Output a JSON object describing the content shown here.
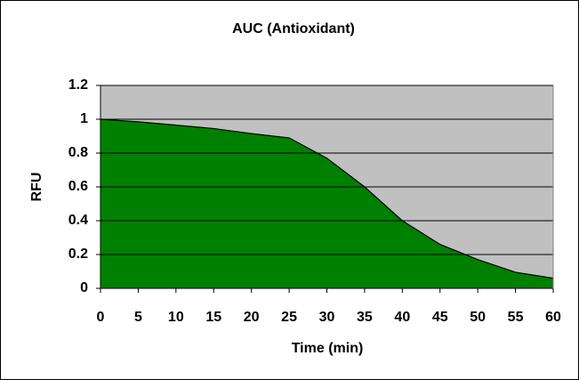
{
  "chart_data": {
    "type": "area",
    "title": "AUC (Antioxidant)",
    "x_label": "Time (min)",
    "y_label": "RFU",
    "x": [
      0,
      5,
      10,
      15,
      20,
      25,
      30,
      35,
      40,
      45,
      50,
      55,
      60
    ],
    "values": [
      1,
      0.985,
      0.965,
      0.945,
      0.915,
      0.89,
      0.77,
      0.6,
      0.4,
      0.26,
      0.17,
      0.095,
      0.06
    ],
    "color": "#008000",
    "xlim": [
      0,
      60
    ],
    "xticks": [
      0,
      5,
      10,
      15,
      20,
      25,
      30,
      35,
      40,
      45,
      50,
      55,
      60
    ],
    "ylim": [
      0,
      1.2
    ],
    "yticks": [
      0,
      0.2,
      0.4,
      0.6,
      0.8,
      1,
      1.2
    ],
    "grid": true
  }
}
